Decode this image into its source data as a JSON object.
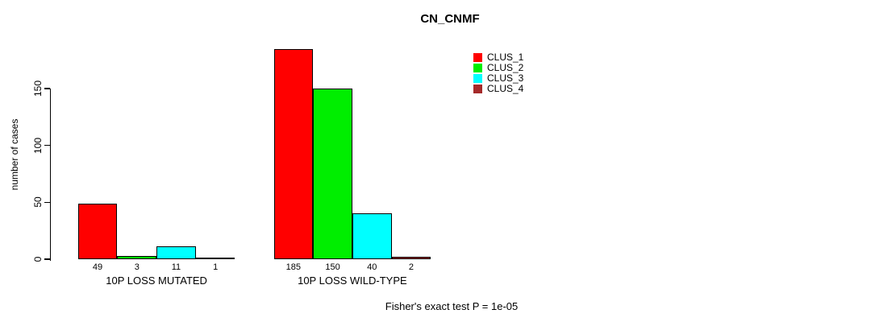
{
  "chart_data": {
    "type": "bar",
    "title": "CN_CNMF",
    "ylabel": "number of cases",
    "xlabel": "",
    "ylim": [
      0,
      150
    ],
    "yticks": [
      0,
      50,
      100,
      150
    ],
    "grid": false,
    "legend_position": "top-right",
    "bar_value_labels": true,
    "categories": [
      "10P LOSS MUTATED",
      "10P LOSS WILD-TYPE"
    ],
    "series": [
      {
        "name": "CLUS_1",
        "color": "#ff0000",
        "values": [
          49,
          185
        ]
      },
      {
        "name": "CLUS_2",
        "color": "#00ee00",
        "values": [
          3,
          150
        ]
      },
      {
        "name": "CLUS_3",
        "color": "#00ffff",
        "values": [
          11,
          40
        ]
      },
      {
        "name": "CLUS_4",
        "color": "#a52a2a",
        "values": [
          1,
          2
        ]
      }
    ],
    "annotation": "Fisher's exact test P = 1e-05"
  },
  "colors": {
    "axis": "#000000",
    "text": "#000000",
    "background": "#ffffff"
  }
}
